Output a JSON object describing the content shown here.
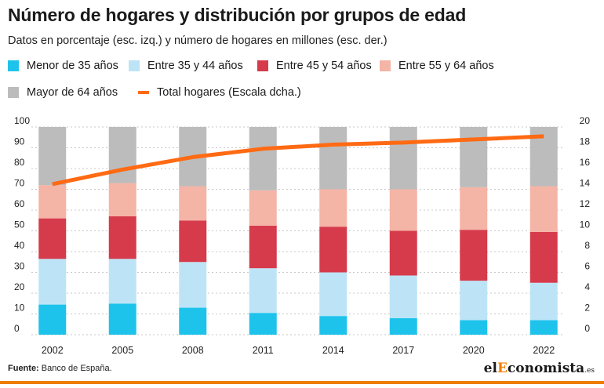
{
  "header": {
    "title": "Número de hogares y distribución por grupos de edad",
    "subtitle": "Datos en porcentaje (esc. izq.) y número de hogares en millones (esc. der.)"
  },
  "legend": [
    {
      "label": "Menor de 35 años",
      "color": "#1ec3ec",
      "kind": "box"
    },
    {
      "label": "Entre 35 y 44 años",
      "color": "#bde4f6",
      "kind": "box"
    },
    {
      "label": "Entre 45 y 54 años",
      "color": "#d63b4c",
      "kind": "box"
    },
    {
      "label": "Entre 55 y 64 años",
      "color": "#f4b4a6",
      "kind": "box"
    },
    {
      "label": "Mayor de 64 años",
      "color": "#bcbcbc",
      "kind": "box"
    },
    {
      "label": "Total hogares (Escala dcha.)",
      "color": "#ff6a13",
      "kind": "line"
    }
  ],
  "chart_data": {
    "type": "bar",
    "stacked": true,
    "categories": [
      "2002",
      "2005",
      "2008",
      "2011",
      "2014",
      "2017",
      "2020",
      "2022"
    ],
    "series": [
      {
        "name": "Menor de 35 años",
        "color": "#1ec3ec",
        "values": [
          14.5,
          15,
          13,
          10.5,
          9,
          8,
          7,
          7
        ]
      },
      {
        "name": "Entre 35 y 44 años",
        "color": "#bde4f6",
        "values": [
          22,
          21.5,
          22,
          21.5,
          21,
          20.5,
          19,
          18
        ]
      },
      {
        "name": "Entre 45 y 54 años",
        "color": "#d63b4c",
        "values": [
          19.5,
          20.5,
          20,
          20.5,
          22,
          21.5,
          24.5,
          24.5
        ]
      },
      {
        "name": "Entre 55 y 64 años",
        "color": "#f4b4a6",
        "values": [
          16,
          16,
          16.5,
          17,
          18,
          20,
          20.5,
          22
        ]
      },
      {
        "name": "Mayor de 64 años",
        "color": "#bcbcbc",
        "values": [
          28,
          27,
          28.5,
          30.5,
          30,
          30,
          29,
          28.5
        ]
      }
    ],
    "line_series": {
      "name": "Total hogares (Escala dcha.)",
      "color": "#ff6a13",
      "axis": "right",
      "values": [
        14.5,
        15.9,
        17.1,
        17.9,
        18.3,
        18.5,
        18.8,
        19.1
      ]
    },
    "ylim_left": [
      0,
      100
    ],
    "yticks_left": [
      "0",
      "10",
      "20",
      "30",
      "40",
      "50",
      "60",
      "70",
      "80",
      "90",
      "100"
    ],
    "ylim_right": [
      0,
      20
    ],
    "yticks_right": [
      "0",
      "2",
      "4",
      "6",
      "8",
      "10",
      "12",
      "14",
      "16",
      "18",
      "20"
    ],
    "grid": "horizontal dotted"
  },
  "footer": {
    "source_label": "Fuente:",
    "source_text": "Banco de España.",
    "brand_prefix": "el",
    "brand_accent": "E",
    "brand_main": "conomista",
    "brand_suffix": ".es"
  }
}
